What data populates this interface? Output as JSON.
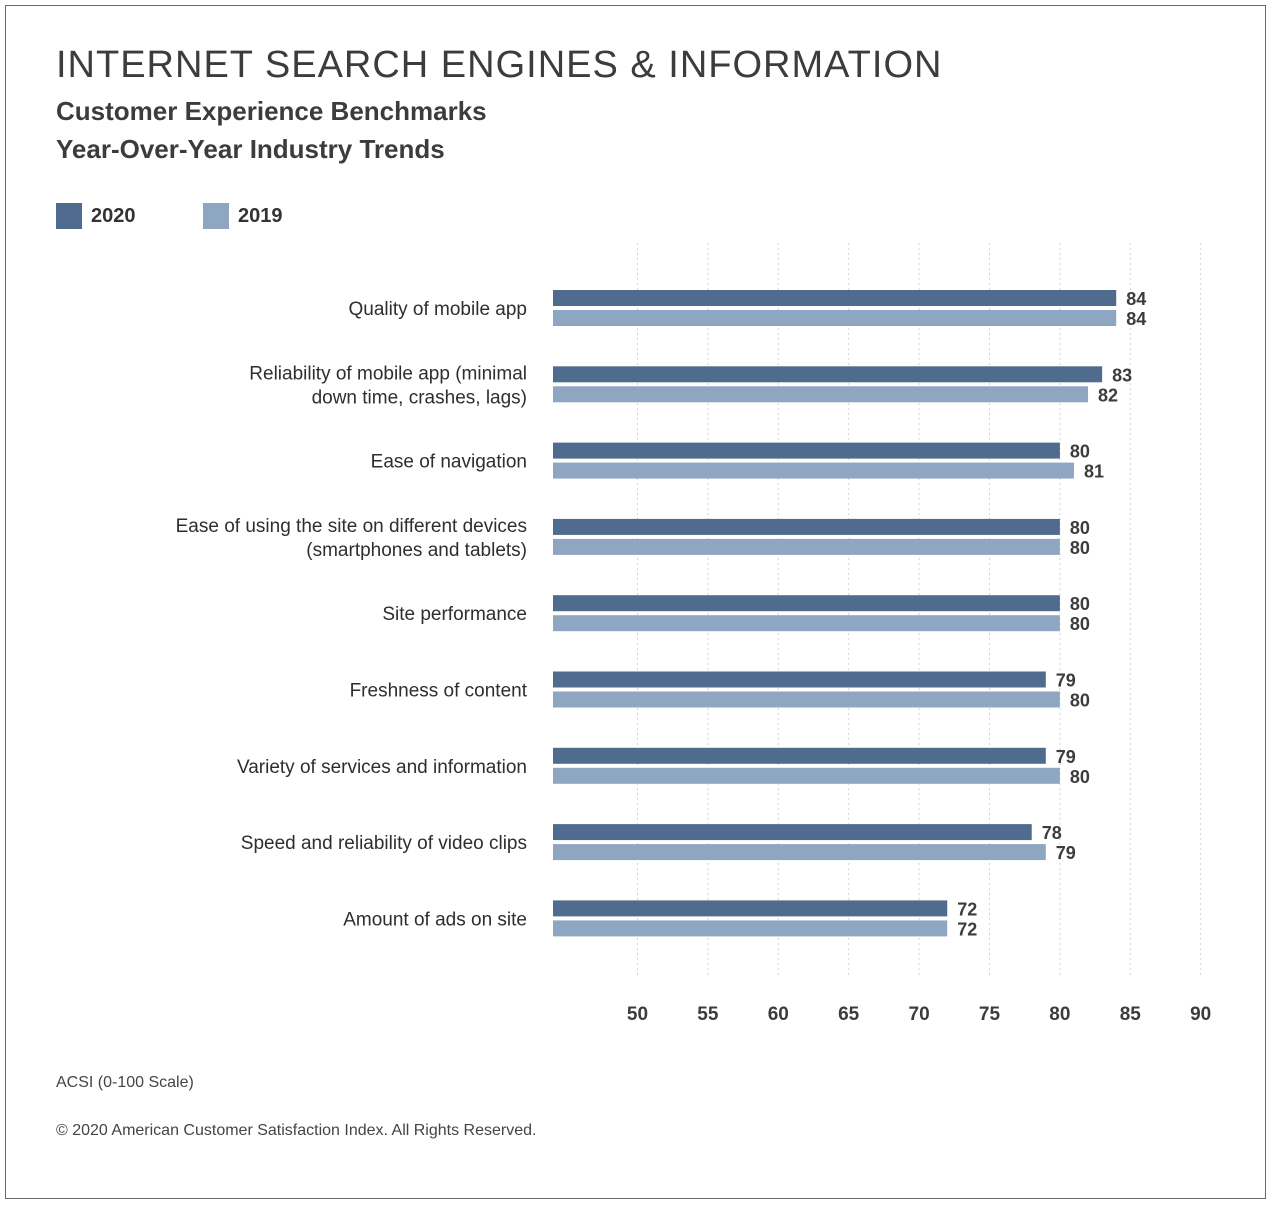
{
  "header": {
    "title": "INTERNET SEARCH ENGINES & INFORMATION",
    "subtitle_1": "Customer Experience Benchmarks",
    "subtitle_2": "Year-Over-Year Industry Trends"
  },
  "legend": [
    {
      "label": "2020",
      "color": "#4f6b8e"
    },
    {
      "label": "2019",
      "color": "#8fa6c3"
    }
  ],
  "chart_data": {
    "type": "bar",
    "orientation": "horizontal",
    "categories": [
      [
        "Quality of mobile app"
      ],
      [
        "Reliability of mobile app (minimal",
        "down time, crashes, lags)"
      ],
      [
        "Ease of navigation"
      ],
      [
        "Ease of using the site on different devices",
        "(smartphones and tablets)"
      ],
      [
        "Site performance"
      ],
      [
        "Freshness of content"
      ],
      [
        "Variety of services and information"
      ],
      [
        "Speed and reliability of video clips"
      ],
      [
        "Amount of ads on site"
      ]
    ],
    "series": [
      {
        "name": "2020",
        "color": "#4f6b8e",
        "values": [
          84,
          83,
          80,
          80,
          80,
          79,
          79,
          78,
          72
        ]
      },
      {
        "name": "2019",
        "color": "#8fa6c3",
        "values": [
          84,
          82,
          81,
          80,
          80,
          80,
          80,
          79,
          72
        ]
      }
    ],
    "xticks": [
      50,
      55,
      60,
      65,
      70,
      75,
      80,
      85,
      90
    ],
    "xlim": [
      44,
      90
    ],
    "grid": true,
    "legend_position": "top-left"
  },
  "footer": {
    "scale_note": "ACSI (0-100 Scale)",
    "copyright": "© 2020 American Customer Satisfaction Index. All Rights Reserved."
  }
}
